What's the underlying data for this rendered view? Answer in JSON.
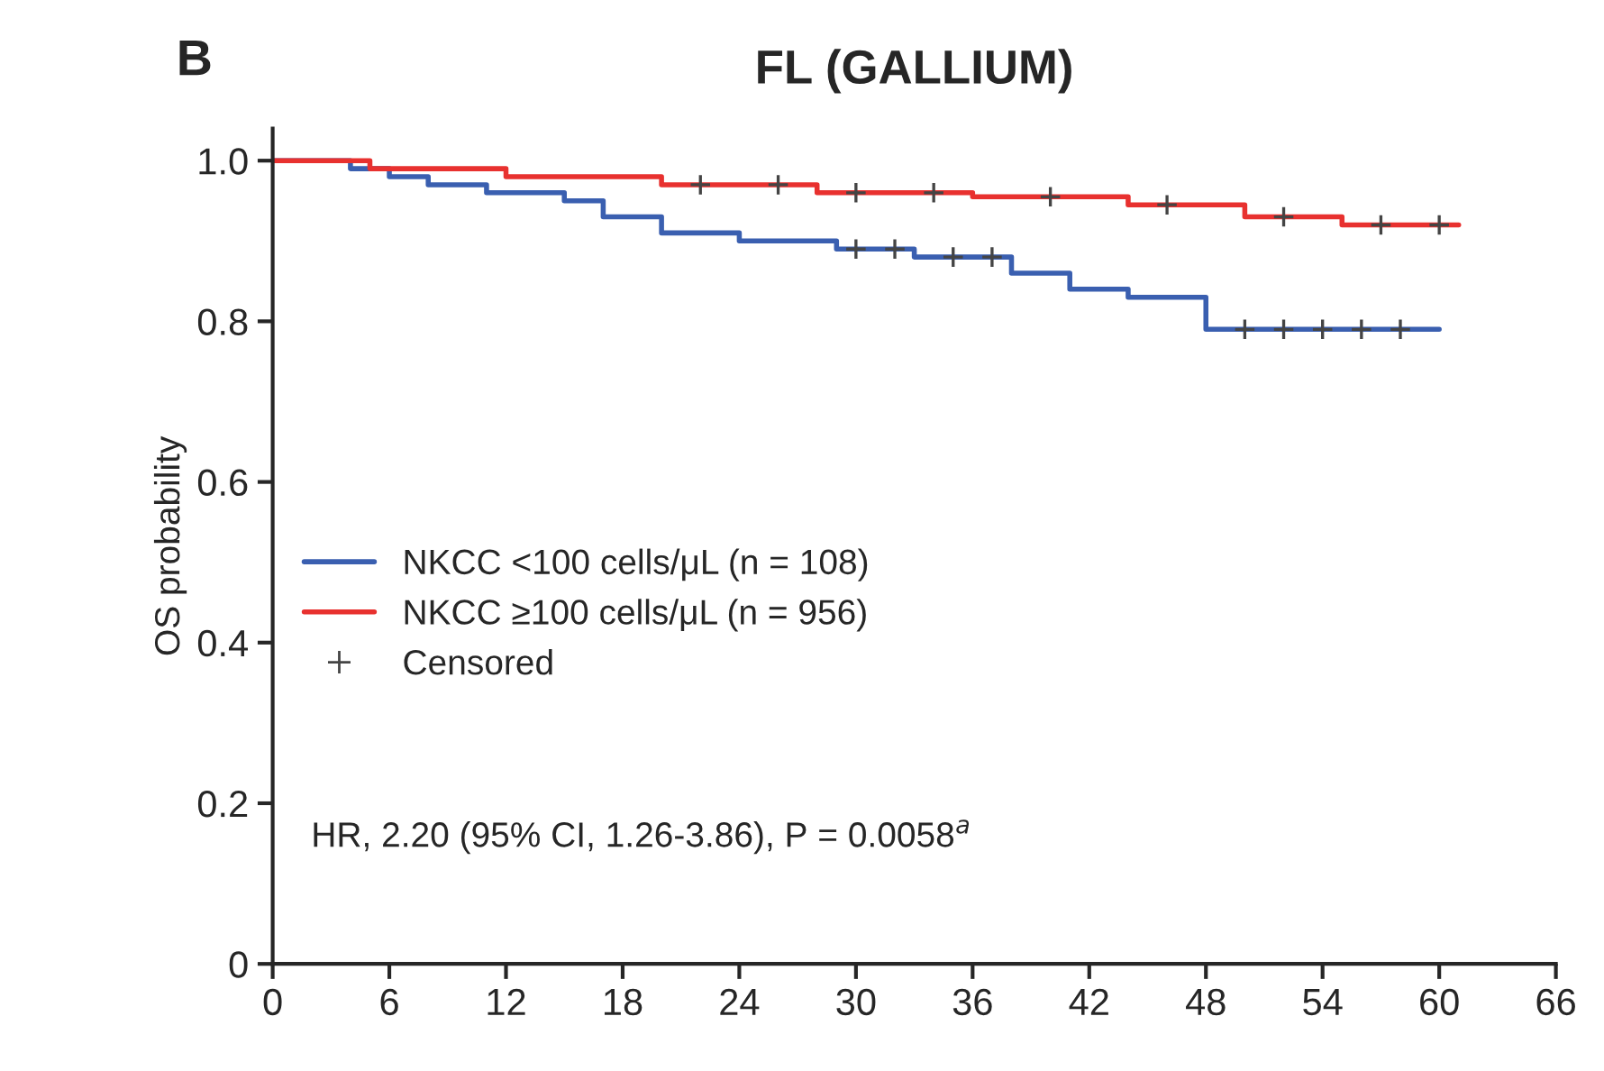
{
  "chart_data": {
    "type": "step",
    "title": "FL (GALLIUM)",
    "ylabel": "OS probability",
    "annotations": [
      "B",
      "HR, 2.20 (95% CI, 1.26-3.86), P = 0.0058$^{a}$"
    ],
    "xlim": [
      0,
      66
    ],
    "xticks": [
      0,
      6,
      12,
      18,
      24,
      30,
      36,
      42,
      48,
      54,
      60,
      66
    ],
    "ylim": [
      0,
      1.04
    ],
    "yticks": [
      0,
      0.2,
      0.4,
      0.6,
      0.8,
      {
        "value": 1.0,
        "label": "1.0"
      }
    ],
    "grid": false,
    "legend": "left",
    "line_style": "solid",
    "series": [
      {
        "name": "NKCC <100 cells/μL (n = 108)",
        "color": "#3a5fb0",
        "x": [
          0,
          4,
          6,
          8,
          11,
          15,
          17,
          20,
          24,
          29,
          33,
          38,
          41,
          44,
          48,
          60
        ],
        "values": [
          1.0,
          0.99,
          0.98,
          0.97,
          0.96,
          0.95,
          0.93,
          0.91,
          0.9,
          0.89,
          0.88,
          0.86,
          0.84,
          0.83,
          0.79,
          0.79
        ]
      },
      {
        "name": "NKCC ≥100 cells/μL (n = 956)",
        "color": "#e8312f",
        "x": [
          0,
          5,
          12,
          20,
          28,
          36,
          44,
          50,
          55,
          61
        ],
        "values": [
          1.0,
          0.99,
          0.98,
          0.97,
          0.96,
          0.955,
          0.945,
          0.93,
          0.92,
          0.92
        ]
      },
      {
        "name": "Censored",
        "type": "scatter",
        "marker": "cross",
        "color": "#444444",
        "x": [
          30,
          32,
          35,
          37,
          50,
          52,
          54,
          56,
          58,
          22,
          26,
          30,
          34,
          40,
          46,
          52,
          57,
          60
        ],
        "values": [
          0.89,
          0.89,
          0.88,
          0.88,
          0.79,
          0.79,
          0.79,
          0.79,
          0.79,
          0.97,
          0.97,
          0.96,
          0.96,
          0.955,
          0.945,
          0.93,
          0.92,
          0.92
        ]
      }
    ]
  }
}
